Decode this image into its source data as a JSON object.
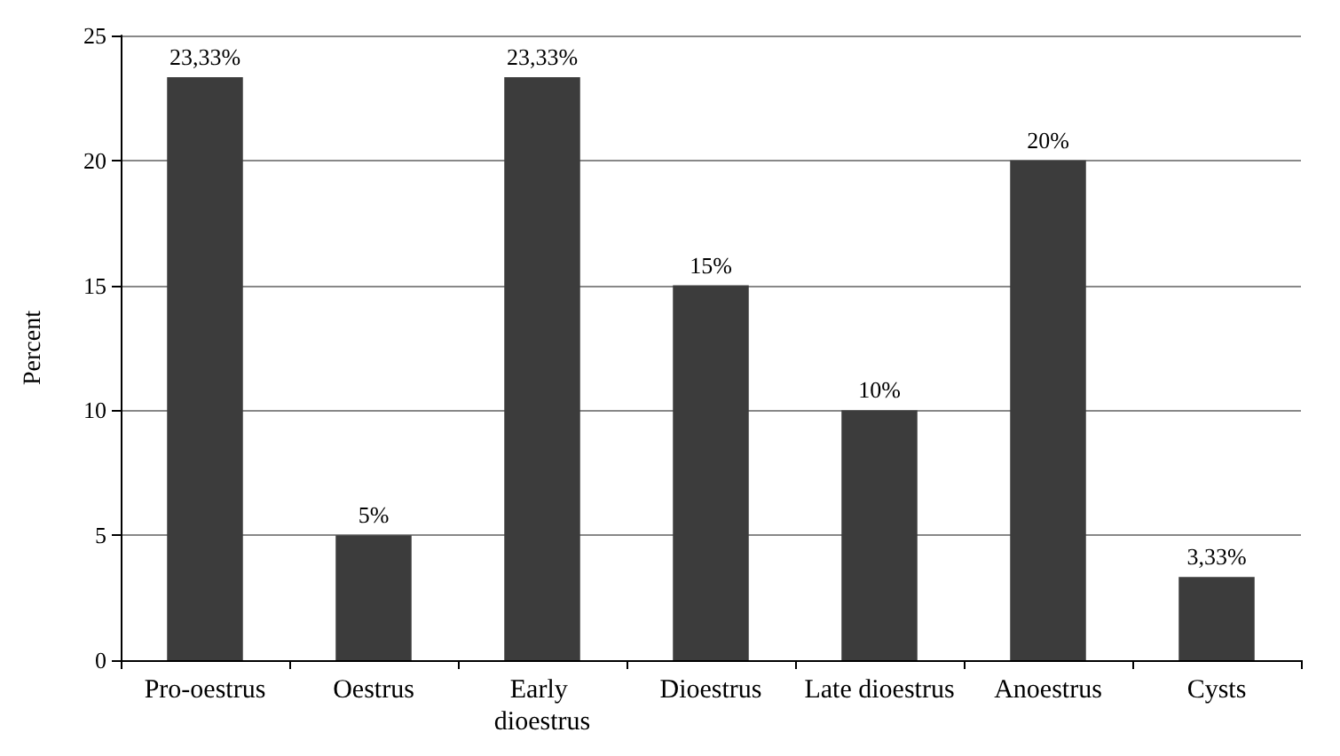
{
  "chart_data": {
    "type": "bar",
    "ylabel": "Percent",
    "categories": [
      "Pro-oestrus",
      "Oestrus",
      "Early dioestrus",
      "Dioestrus",
      "Late dioestrus",
      "Anoestrus",
      "Cysts"
    ],
    "values": [
      23.33,
      5,
      23.33,
      15,
      10,
      20,
      3.33
    ],
    "value_labels": [
      "23,33%",
      "5%",
      "23,33%",
      "15%",
      "10%",
      "20%",
      "3,33%"
    ],
    "color": "#3c3c3c",
    "ylim": [
      0,
      25
    ],
    "yticks": [
      0,
      5,
      10,
      15,
      20,
      25
    ],
    "grid": "y"
  }
}
